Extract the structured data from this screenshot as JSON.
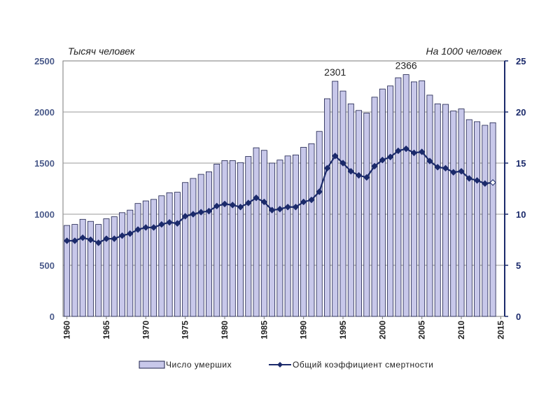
{
  "chart_data": {
    "type": "bar+line",
    "title": "",
    "left_axis_label": "Тысяч человек",
    "right_axis_label": "На 1000 человек",
    "left_ylim": [
      0,
      2500
    ],
    "right_ylim": [
      0,
      25
    ],
    "left_ticks": [
      "0",
      "500",
      "1000",
      "1500",
      "2000",
      "2500"
    ],
    "right_ticks": [
      "0",
      "5",
      "10",
      "15",
      "20",
      "25"
    ],
    "x_ticks": [
      "1960",
      "1965",
      "1970",
      "1975",
      "1980",
      "1985",
      "1990",
      "1995",
      "2000",
      "2005",
      "2010",
      "2015"
    ],
    "years": [
      1960,
      1961,
      1962,
      1963,
      1964,
      1965,
      1966,
      1967,
      1968,
      1969,
      1970,
      1971,
      1972,
      1973,
      1974,
      1975,
      1976,
      1977,
      1978,
      1979,
      1980,
      1981,
      1982,
      1983,
      1984,
      1985,
      1986,
      1987,
      1988,
      1989,
      1990,
      1991,
      1992,
      1993,
      1994,
      1995,
      1996,
      1997,
      1998,
      1999,
      2000,
      2001,
      2002,
      2003,
      2004,
      2005,
      2006,
      2007,
      2008,
      2009,
      2010,
      2011,
      2012,
      2013,
      2014
    ],
    "series": [
      {
        "name": "Число умерших",
        "kind": "bar",
        "axis": "left",
        "color": "#c8c8ea",
        "edge": "#1b1f4b",
        "values": [
          890,
          900,
          950,
          930,
          900,
          955,
          975,
          1015,
          1040,
          1105,
          1130,
          1145,
          1180,
          1210,
          1215,
          1310,
          1350,
          1390,
          1415,
          1490,
          1525,
          1525,
          1505,
          1565,
          1650,
          1625,
          1500,
          1530,
          1570,
          1580,
          1655,
          1690,
          1810,
          2130,
          2301,
          2205,
          2080,
          2015,
          1990,
          2145,
          2225,
          2255,
          2335,
          2366,
          2295,
          2305,
          2165,
          2080,
          2075,
          2010,
          2030,
          1925,
          1905,
          1870,
          1895
        ]
      },
      {
        "name": "Общий коэффициент смертности",
        "kind": "line",
        "axis": "right",
        "color": "#1b2a6b",
        "values": [
          7.4,
          7.4,
          7.7,
          7.5,
          7.2,
          7.6,
          7.6,
          7.9,
          8.1,
          8.5,
          8.7,
          8.7,
          9.0,
          9.2,
          9.1,
          9.8,
          10.0,
          10.2,
          10.3,
          10.8,
          11.0,
          10.9,
          10.7,
          11.1,
          11.6,
          11.2,
          10.4,
          10.5,
          10.7,
          10.7,
          11.2,
          11.4,
          12.2,
          14.5,
          15.7,
          15.0,
          14.2,
          13.8,
          13.6,
          14.7,
          15.3,
          15.6,
          16.2,
          16.4,
          16.0,
          16.1,
          15.2,
          14.6,
          14.5,
          14.1,
          14.2,
          13.5,
          13.3,
          13.0,
          13.1
        ]
      }
    ],
    "annotations": [
      {
        "text": "2301",
        "year": 1994
      },
      {
        "text": "2366",
        "year": 2003
      }
    ],
    "legend_position": "bottom"
  }
}
